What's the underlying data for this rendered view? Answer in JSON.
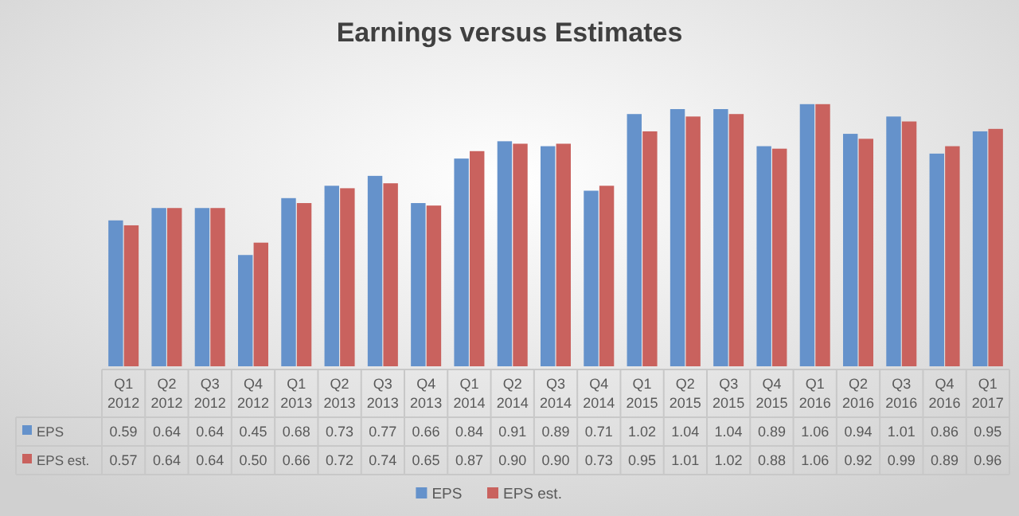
{
  "chart_data": {
    "type": "bar",
    "title": "Earnings versus Estimates",
    "categories": [
      "Q1 2012",
      "Q2 2012",
      "Q3 2012",
      "Q4 2012",
      "Q1 2013",
      "Q2 2013",
      "Q3 2013",
      "Q4 2013",
      "Q1 2014",
      "Q2 2014",
      "Q3 2014",
      "Q4 2014",
      "Q1 2015",
      "Q2 2015",
      "Q3 2015",
      "Q4 2015",
      "Q1 2016",
      "Q2 2016",
      "Q3 2016",
      "Q4 2016",
      "Q1 2017"
    ],
    "series": [
      {
        "name": "EPS",
        "color": "#6592cb",
        "values": [
          0.59,
          0.64,
          0.64,
          0.45,
          0.68,
          0.73,
          0.77,
          0.66,
          0.84,
          0.91,
          0.89,
          0.71,
          1.02,
          1.04,
          1.04,
          0.89,
          1.06,
          0.94,
          1.01,
          0.86,
          0.95
        ],
        "value_labels": [
          "0.59",
          "0.64",
          "0.64",
          "0.45",
          "0.68",
          "0.73",
          "0.77",
          "0.66",
          "0.84",
          "0.91",
          "0.89",
          "0.71",
          "1.02",
          "1.04",
          "1.04",
          "0.89",
          "1.06",
          "0.94",
          "1.01",
          "0.86",
          "0.95"
        ]
      },
      {
        "name": "EPS est.",
        "color": "#c9625e",
        "values": [
          0.57,
          0.64,
          0.64,
          0.5,
          0.66,
          0.72,
          0.74,
          0.65,
          0.87,
          0.9,
          0.9,
          0.73,
          0.95,
          1.01,
          1.02,
          0.88,
          1.06,
          0.92,
          0.99,
          0.89,
          0.96
        ],
        "value_labels": [
          "0.57",
          "0.64",
          "0.64",
          "0.50",
          "0.66",
          "0.72",
          "0.74",
          "0.65",
          "0.87",
          "0.90",
          "0.90",
          "0.73",
          "0.95",
          "1.01",
          "1.02",
          "0.88",
          "1.06",
          "0.92",
          "0.99",
          "0.89",
          "0.96"
        ]
      }
    ],
    "grid": false,
    "legend": "bottom"
  }
}
